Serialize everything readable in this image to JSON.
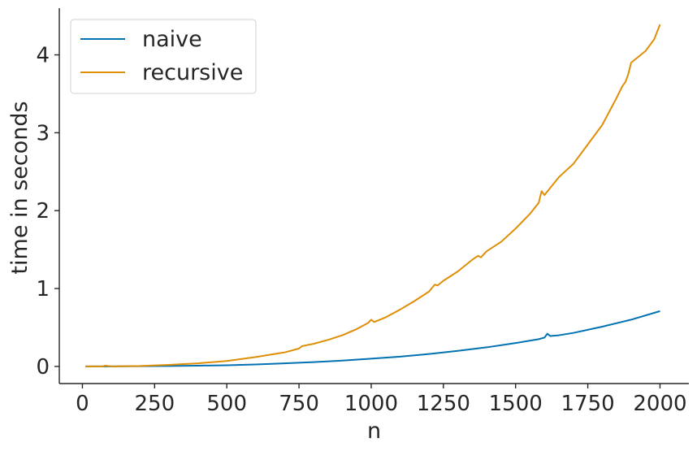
{
  "chart_data": {
    "type": "line",
    "xlabel": "n",
    "ylabel": "time in seconds",
    "xlim": [
      -80,
      2100
    ],
    "ylim": [
      -0.22,
      4.6
    ],
    "xticks": [
      0,
      250,
      500,
      750,
      1000,
      1250,
      1500,
      1750,
      2000
    ],
    "yticks": [
      0,
      1,
      2,
      3,
      4
    ],
    "grid": false,
    "legend_position": "top-left",
    "series": [
      {
        "name": "naive",
        "color": "#0072b2",
        "x": [
          10,
          100,
          200,
          300,
          400,
          500,
          600,
          700,
          800,
          900,
          1000,
          1100,
          1200,
          1300,
          1400,
          1500,
          1580,
          1600,
          1610,
          1620,
          1650,
          1700,
          1800,
          1900,
          2000
        ],
        "y": [
          0.0,
          0.0,
          0.003,
          0.006,
          0.01,
          0.015,
          0.025,
          0.04,
          0.055,
          0.075,
          0.1,
          0.125,
          0.16,
          0.2,
          0.245,
          0.3,
          0.35,
          0.37,
          0.42,
          0.39,
          0.4,
          0.43,
          0.51,
          0.6,
          0.71
        ]
      },
      {
        "name": "recursive",
        "color": "#de8f05",
        "x": [
          10,
          70,
          80,
          100,
          200,
          300,
          350,
          400,
          500,
          600,
          700,
          750,
          760,
          800,
          850,
          900,
          950,
          990,
          1000,
          1010,
          1050,
          1100,
          1150,
          1200,
          1220,
          1230,
          1250,
          1300,
          1350,
          1370,
          1380,
          1400,
          1450,
          1500,
          1550,
          1580,
          1590,
          1600,
          1650,
          1700,
          1750,
          1800,
          1850,
          1870,
          1880,
          1890,
          1900,
          1950,
          1980,
          2000
        ],
        "y": [
          0.0,
          0.0,
          0.01,
          0.0,
          0.005,
          0.02,
          0.03,
          0.04,
          0.07,
          0.12,
          0.18,
          0.23,
          0.26,
          0.29,
          0.34,
          0.4,
          0.48,
          0.56,
          0.6,
          0.57,
          0.63,
          0.73,
          0.84,
          0.96,
          1.05,
          1.04,
          1.1,
          1.22,
          1.37,
          1.42,
          1.4,
          1.48,
          1.6,
          1.77,
          1.96,
          2.1,
          2.25,
          2.2,
          2.43,
          2.6,
          2.85,
          3.1,
          3.45,
          3.6,
          3.65,
          3.75,
          3.9,
          4.05,
          4.2,
          4.39
        ]
      }
    ]
  }
}
